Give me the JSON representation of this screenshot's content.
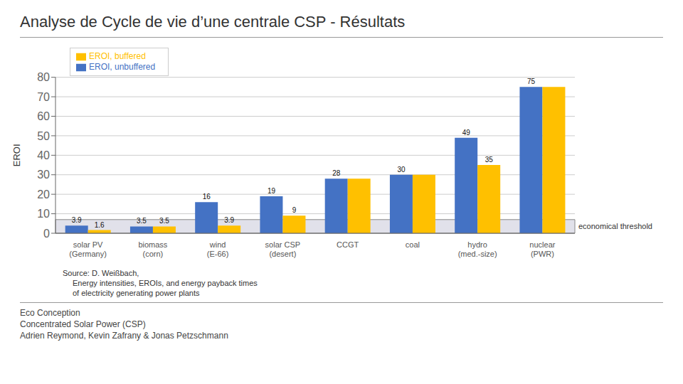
{
  "chart_data": {
    "type": "bar",
    "title": "Analyse de Cycle de vie d’une centrale CSP - Résultats",
    "y_label": "EROI",
    "categories": [
      "solar PV\n(Germany)",
      "biomass\n(corn)",
      "wind\n(E-66)",
      "solar CSP\n(desert)",
      "CCGT",
      "coal",
      "hydro\n(med.-size)",
      "nuclear\n(PWR)"
    ],
    "series": [
      {
        "name": "EROI, unbuffered",
        "color": "#4472C4",
        "values": [
          3.9,
          3.5,
          16,
          19,
          28,
          30,
          49,
          75
        ],
        "value_labels": [
          "3.9",
          "3.5",
          "16",
          "19",
          "28",
          "30",
          "49",
          "75"
        ]
      },
      {
        "name": "EROI, buffered",
        "color": "#FFC000",
        "values": [
          1.6,
          3.5,
          3.9,
          9,
          28,
          30,
          35,
          75
        ],
        "value_labels": [
          "1.6",
          "3.5",
          "3.9",
          "9",
          null,
          null,
          "35",
          null
        ]
      }
    ],
    "ylim": [
      0,
      80
    ],
    "yticks": [
      0,
      10,
      20,
      30,
      40,
      50,
      60,
      70,
      80
    ],
    "grid": true,
    "legend": "upper left",
    "data_labels": true,
    "threshold": {
      "value": 7,
      "label": "economical threshold",
      "color": "#C8C8D8"
    },
    "source": [
      "Source: D. Weißbach,",
      "Energy intensities, EROIs, and energy payback times",
      "of electricity generating power plants"
    ],
    "footer": [
      "Eco Conception",
      "Concentrated Solar Power (CSP)",
      "Adrien Reymond, Kevin Zafrany & Jonas Petzschmann"
    ]
  }
}
